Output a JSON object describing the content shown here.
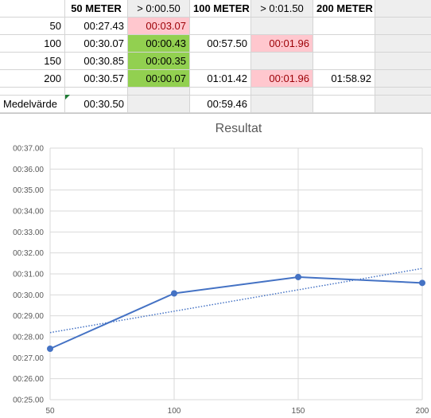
{
  "sheet": {
    "headers": [
      "50 METER",
      "> 0:00.50",
      "100 METER",
      "> 0:01.50",
      "200 METER"
    ],
    "rows": [
      {
        "label": "50",
        "m50": "00:27.43",
        "d50": "00:03.07",
        "m100": "",
        "d100": "",
        "m200": ""
      },
      {
        "label": "100",
        "m50": "00:30.07",
        "d50": "00:00.43",
        "m100": "00:57.50",
        "d100": "00:01.96",
        "m200": ""
      },
      {
        "label": "150",
        "m50": "00:30.85",
        "d50": "00:00.35",
        "m100": "",
        "d100": "",
        "m200": ""
      },
      {
        "label": "200",
        "m50": "00:30.57",
        "d50": "00:00.07",
        "m100": "01:01.42",
        "d100": "00:01.96",
        "m200": "01:58.92"
      }
    ],
    "average": {
      "label": "Medelvärde",
      "m50": "00:30.50",
      "m100": "00:59.46"
    },
    "colors": {
      "bad": "#ffc7ce",
      "bad_text": "#9c0006",
      "good": "#92d050",
      "grey": "#eeeeee"
    }
  },
  "chart_data": {
    "type": "line",
    "title": "Resultat",
    "x": [
      50,
      100,
      150,
      200
    ],
    "series": [
      {
        "values": [
          27.43,
          30.07,
          30.85,
          30.57
        ],
        "color": "#4472c4"
      }
    ],
    "trendline": {
      "type": "linear",
      "style": "dotted",
      "color": "#4472c4"
    },
    "xticks": [
      "50",
      "100",
      "150",
      "200"
    ],
    "yticks": [
      "00:25.00",
      "00:26.00",
      "00:27.00",
      "00:28.00",
      "00:29.00",
      "00:30.00",
      "00:31.00",
      "00:32.00",
      "00:33.00",
      "00:34.00",
      "00:35.00",
      "00:36.00",
      "00:37.00"
    ],
    "xlim": [
      50,
      200
    ],
    "ylim": [
      25,
      37
    ],
    "grid": {
      "horizontal": true,
      "vertical": true
    },
    "legend": "none"
  }
}
